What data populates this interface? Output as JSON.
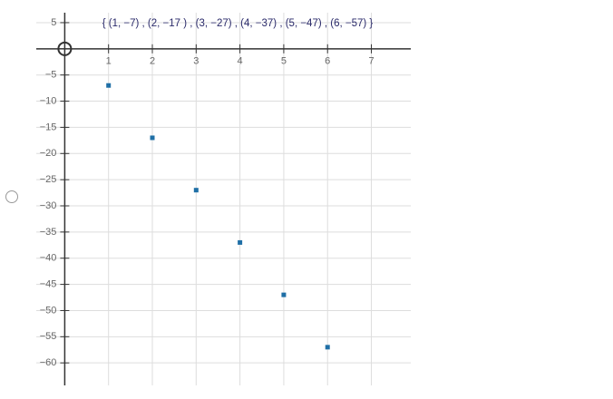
{
  "chart_data": {
    "type": "scatter",
    "title": "{ (1, −7) , (2, −17 ) , (3, −27) , (4, −37) , (5, −47) , (6, −57) }",
    "x": [
      1,
      2,
      3,
      4,
      5,
      6
    ],
    "values": [
      -7,
      -17,
      -27,
      -37,
      -47,
      -57
    ],
    "color": "#1f6fa6",
    "xlim": [
      -0.65,
      7.9
    ],
    "ylim": [
      -64.3,
      6.9
    ],
    "xticks": [
      1,
      2,
      3,
      4,
      5,
      6,
      7
    ],
    "yticks": [
      5,
      {
        "value": -5,
        "label": "−5"
      },
      {
        "value": -10,
        "label": "−10"
      },
      {
        "value": -15,
        "label": "−15"
      },
      {
        "value": -20,
        "label": "−20"
      },
      {
        "value": -25,
        "label": "−25"
      },
      {
        "value": -30,
        "label": "−30"
      },
      {
        "value": -35,
        "label": "−35"
      },
      {
        "value": -40,
        "label": "−40"
      },
      {
        "value": -45,
        "label": "−45"
      },
      {
        "value": -50,
        "label": "−50"
      },
      {
        "value": -55,
        "label": "−55"
      },
      {
        "value": -60,
        "label": "−60"
      }
    ],
    "grid": true
  }
}
